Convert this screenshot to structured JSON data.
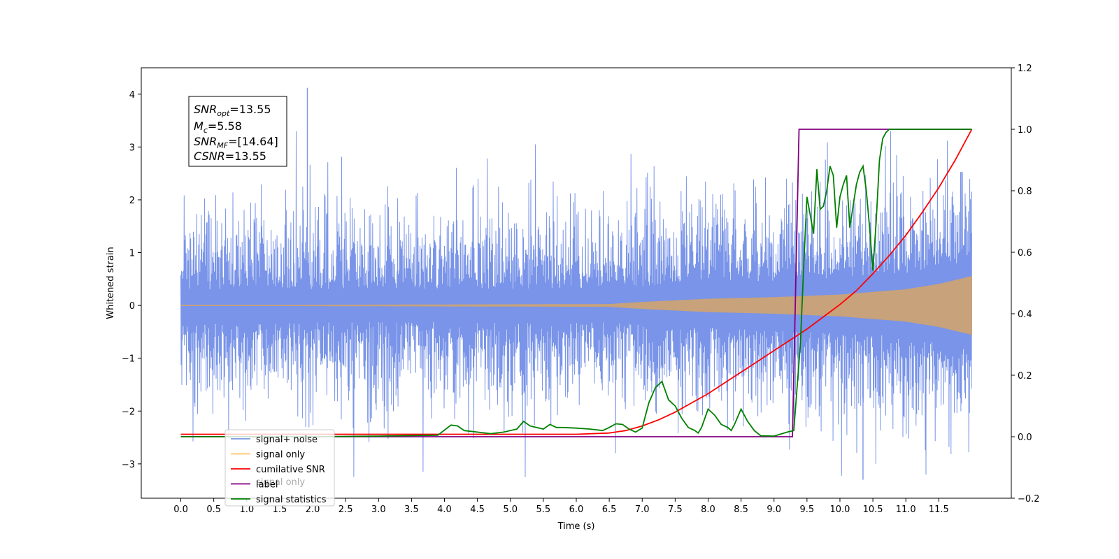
{
  "chart_data": {
    "type": "line",
    "title": "",
    "xlabel": "Time (s)",
    "ylabel": "Whitened strain",
    "xlim": [
      -0.6,
      12.6
    ],
    "ylim": [
      -3.65,
      4.5
    ],
    "y2lim": [
      -0.2,
      1.2
    ],
    "x_ticks": [
      "0.0",
      "0.5",
      "1.0",
      "1.5",
      "2.0",
      "2.5",
      "3.0",
      "3.5",
      "4.0",
      "4.5",
      "5.0",
      "5.5",
      "6.0",
      "6.5",
      "7.0",
      "7.5",
      "8.0",
      "8.5",
      "9.0",
      "9.5",
      "10.0",
      "10.5",
      "11.0",
      "11.5"
    ],
    "y_ticks": [
      "−3",
      "−2",
      "−1",
      "0",
      "1",
      "2",
      "3",
      "4"
    ],
    "y2_ticks": [
      "−0.2",
      "0.0",
      "0.2",
      "0.4",
      "0.6",
      "0.8",
      "1.0",
      "1.2"
    ],
    "grid": false,
    "legend_position": "lower-left",
    "legend": [
      {
        "label": "signal+ noise",
        "color": "#7994E8"
      },
      {
        "label": "signal only",
        "color": "#FFC766"
      },
      {
        "label": "cumilative SNR",
        "color": "#FF0000"
      },
      {
        "label": "label",
        "color": "#800080"
      },
      {
        "label": "signal statistics",
        "color": "#008000"
      }
    ],
    "legend_overlap_text": "signal only",
    "annotation": {
      "snr_opt": {
        "main": "SNR",
        "sub": "opt",
        "value": "=13.55"
      },
      "mc": {
        "main": "M",
        "sub": "c",
        "value": "=5.58"
      },
      "snr_mf": {
        "main": "SNR",
        "sub": "MF",
        "value": "=[14.64]"
      },
      "csnr": {
        "main": "CSNR",
        "sub": "",
        "value": "=13.55"
      }
    },
    "series": [
      {
        "name": "signal+ noise",
        "axis": "left",
        "color": "#7994E8",
        "description_range": {
          "x_start": 0.0,
          "x_end": 12.0
        },
        "noise_std": 0.75,
        "peak_max": 4.12,
        "peak_max_x": 1.92,
        "trough_min": -3.3,
        "trough_min_x": 10.35
      },
      {
        "name": "signal only",
        "axis": "left",
        "color": "#C8A27A",
        "envelope_x": [
          0.0,
          6.5,
          7.0,
          8.0,
          9.0,
          10.0,
          11.0,
          11.5,
          12.0
        ],
        "envelope_y": [
          0.0,
          0.02,
          0.06,
          0.12,
          0.15,
          0.2,
          0.3,
          0.4,
          0.55
        ]
      },
      {
        "name": "cumilative SNR",
        "axis": "right",
        "color": "#FF0000",
        "x": [
          0.0,
          1.0,
          2.0,
          3.0,
          4.0,
          5.0,
          6.0,
          6.5,
          6.75,
          7.0,
          7.25,
          7.5,
          7.75,
          8.0,
          8.25,
          8.5,
          8.75,
          9.0,
          9.25,
          9.5,
          9.75,
          10.0,
          10.25,
          10.5,
          10.75,
          11.0,
          11.25,
          11.5,
          11.75,
          12.0
        ],
        "values": [
          0.008,
          0.008,
          0.008,
          0.008,
          0.008,
          0.008,
          0.008,
          0.012,
          0.02,
          0.035,
          0.055,
          0.08,
          0.11,
          0.14,
          0.175,
          0.21,
          0.245,
          0.28,
          0.315,
          0.35,
          0.39,
          0.43,
          0.475,
          0.53,
          0.59,
          0.655,
          0.73,
          0.81,
          0.9,
          1.0
        ]
      },
      {
        "name": "label",
        "axis": "right",
        "color": "#800080",
        "x": [
          0.0,
          9.28,
          9.38,
          12.0
        ],
        "values": [
          0.0,
          0.0,
          1.0,
          1.0
        ]
      },
      {
        "name": "signal statistics",
        "axis": "right",
        "color": "#008000",
        "x": [
          0.0,
          1.0,
          2.0,
          3.0,
          3.9,
          4.1,
          4.2,
          4.3,
          4.5,
          4.7,
          4.9,
          5.1,
          5.2,
          5.3,
          5.5,
          5.6,
          5.7,
          5.8,
          6.0,
          6.2,
          6.4,
          6.5,
          6.6,
          6.7,
          6.8,
          6.9,
          7.0,
          7.1,
          7.2,
          7.3,
          7.4,
          7.5,
          7.6,
          7.7,
          7.8,
          7.85,
          7.9,
          8.0,
          8.1,
          8.2,
          8.3,
          8.35,
          8.4,
          8.5,
          8.6,
          8.7,
          8.8,
          9.0,
          9.2,
          9.3,
          9.4,
          9.45,
          9.5,
          9.55,
          9.6,
          9.65,
          9.7,
          9.75,
          9.8,
          9.85,
          9.9,
          9.95,
          10.0,
          10.05,
          10.1,
          10.15,
          10.2,
          10.25,
          10.3,
          10.35,
          10.4,
          10.45,
          10.5,
          10.55,
          10.6,
          10.65,
          10.7,
          10.75,
          10.8,
          11.0,
          12.0
        ],
        "values": [
          0.0,
          0.0,
          0.0,
          0.002,
          0.005,
          0.038,
          0.035,
          0.02,
          0.015,
          0.01,
          0.015,
          0.025,
          0.05,
          0.035,
          0.025,
          0.04,
          0.03,
          0.03,
          0.028,
          0.025,
          0.02,
          0.03,
          0.042,
          0.04,
          0.025,
          0.015,
          0.028,
          0.11,
          0.16,
          0.18,
          0.12,
          0.1,
          0.06,
          0.03,
          0.02,
          0.012,
          0.03,
          0.09,
          0.07,
          0.04,
          0.03,
          0.02,
          0.04,
          0.09,
          0.05,
          0.02,
          0.003,
          0.002,
          0.015,
          0.02,
          0.3,
          0.55,
          0.78,
          0.72,
          0.66,
          0.87,
          0.74,
          0.75,
          0.8,
          0.88,
          0.85,
          0.68,
          0.78,
          0.82,
          0.85,
          0.68,
          0.75,
          0.82,
          0.86,
          0.88,
          0.8,
          0.68,
          0.54,
          0.7,
          0.9,
          0.97,
          0.99,
          1.0,
          1.0,
          1.0,
          1.0
        ]
      }
    ]
  }
}
